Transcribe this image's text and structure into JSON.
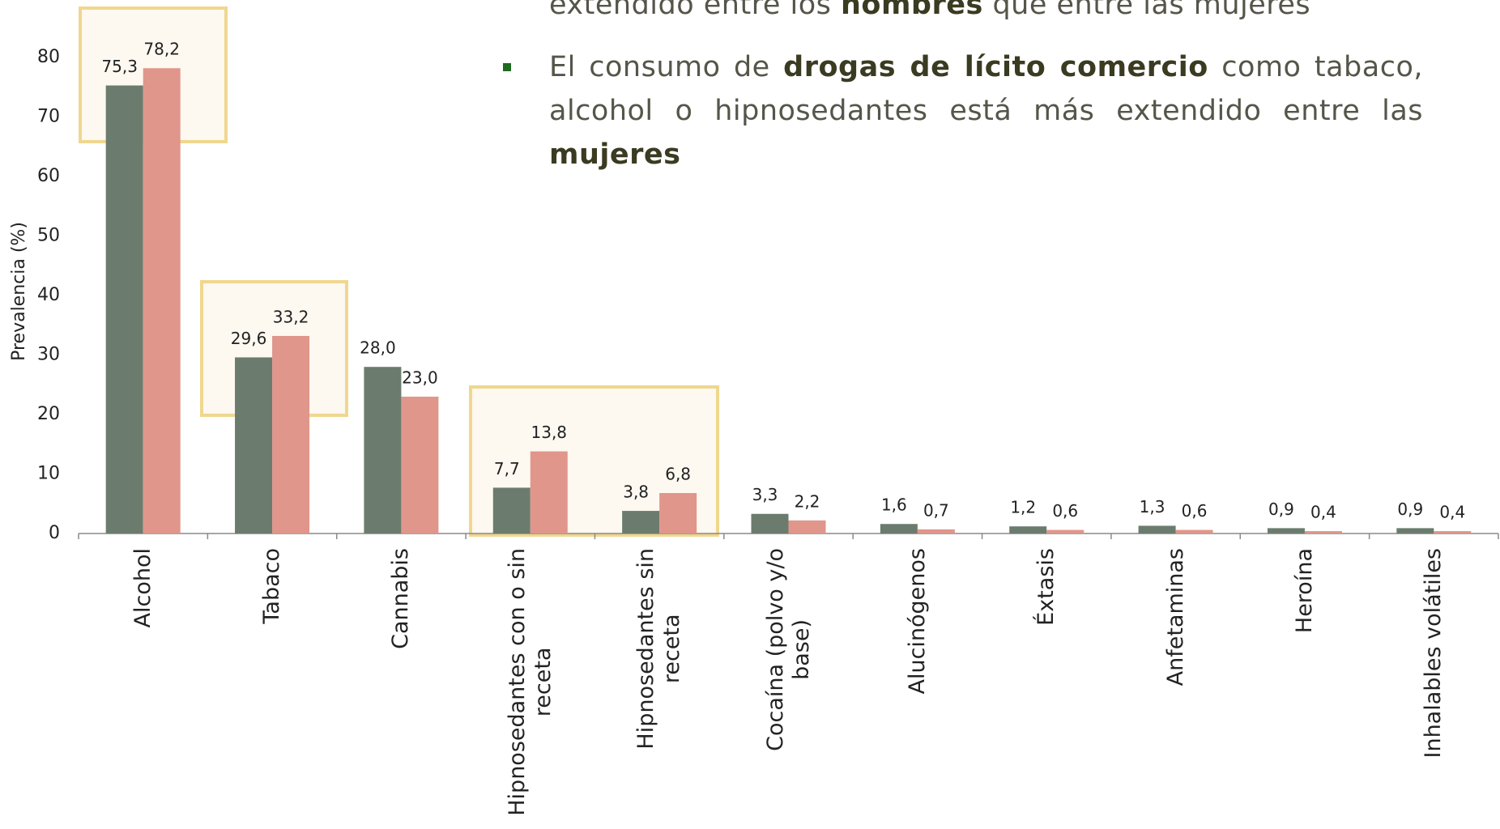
{
  "notes": [
    {
      "bullet": false,
      "segments": [
        {
          "text": "extendido entre los "
        },
        {
          "text": "hombres",
          "bold": true
        },
        {
          "text": " que entre las mujeres"
        }
      ]
    },
    {
      "bullet": true,
      "segments": [
        {
          "text": "El consumo de "
        },
        {
          "text": "drogas de lícito comercio",
          "bold": true
        },
        {
          "text": " como tabaco, alcohol o hipnosedantes está más extendido entre las "
        },
        {
          "text": "mujeres",
          "bold": true
        }
      ]
    }
  ],
  "chart_data": {
    "type": "bar",
    "ylabel": "Prevalencia (%)",
    "categories": [
      "Alcohol",
      "Tabaco",
      "Cannabis",
      "Hipnosedantes con o sin\nreceta",
      "Hipnosedantes sin\nreceta",
      "Cocaína (polvo y/o\nbase)",
      "Alucinógenos",
      "Éxtasis",
      "Anfetaminas",
      "Heroína",
      "Inhalables volátiles"
    ],
    "series": [
      {
        "color": "#6b7c6e",
        "values": [
          75.3,
          29.6,
          28.0,
          7.7,
          3.8,
          3.3,
          1.6,
          1.2,
          1.3,
          0.9,
          0.9
        ],
        "value_labels": [
          "75,3",
          "29,6",
          "28,0",
          "7,7",
          "3,8",
          "3,3",
          "1,6",
          "1,2",
          "1,3",
          "0,9",
          "0,9"
        ]
      },
      {
        "color": "#e0968b",
        "values": [
          78.2,
          33.2,
          23.0,
          13.8,
          6.8,
          2.2,
          0.7,
          0.6,
          0.6,
          0.4,
          0.4
        ],
        "value_labels": [
          "78,2",
          "33,2",
          "23,0",
          "13,8",
          "6,8",
          "2,2",
          "0,7",
          "0,6",
          "0,6",
          "0,4",
          "0,4"
        ]
      }
    ],
    "ylim": [
      0,
      80
    ],
    "yticks": [
      0,
      10,
      20,
      30,
      40,
      50,
      60,
      70,
      80
    ]
  }
}
